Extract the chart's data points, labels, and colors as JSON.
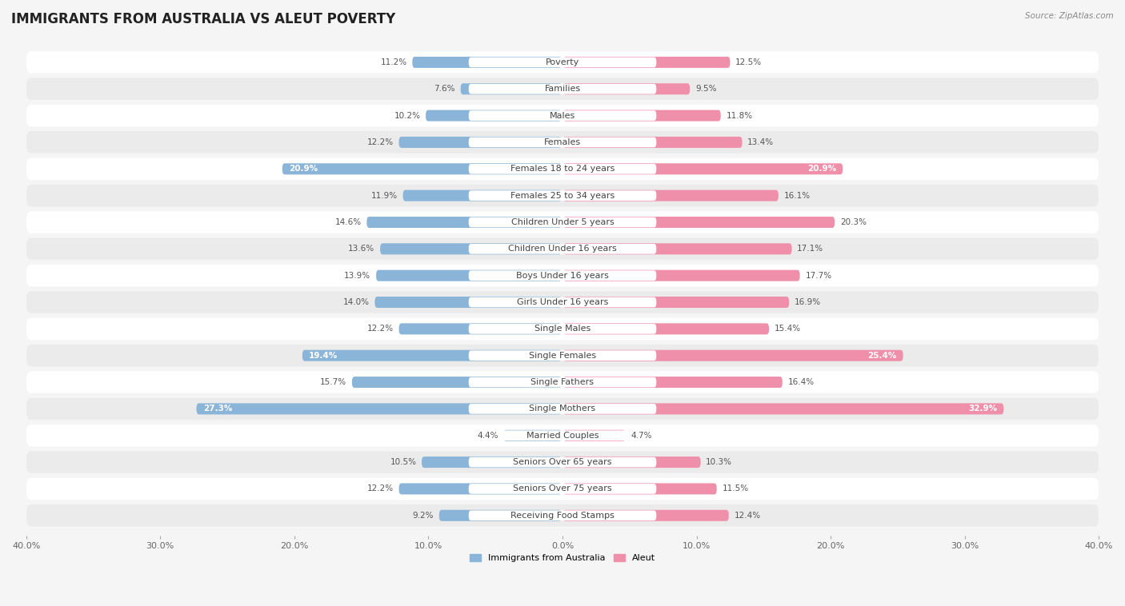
{
  "title": "IMMIGRANTS FROM AUSTRALIA VS ALEUT POVERTY",
  "source": "Source: ZipAtlas.com",
  "categories": [
    "Poverty",
    "Families",
    "Males",
    "Females",
    "Females 18 to 24 years",
    "Females 25 to 34 years",
    "Children Under 5 years",
    "Children Under 16 years",
    "Boys Under 16 years",
    "Girls Under 16 years",
    "Single Males",
    "Single Females",
    "Single Fathers",
    "Single Mothers",
    "Married Couples",
    "Seniors Over 65 years",
    "Seniors Over 75 years",
    "Receiving Food Stamps"
  ],
  "left_values": [
    11.2,
    7.6,
    10.2,
    12.2,
    20.9,
    11.9,
    14.6,
    13.6,
    13.9,
    14.0,
    12.2,
    19.4,
    15.7,
    27.3,
    4.4,
    10.5,
    12.2,
    9.2
  ],
  "right_values": [
    12.5,
    9.5,
    11.8,
    13.4,
    20.9,
    16.1,
    20.3,
    17.1,
    17.7,
    16.9,
    15.4,
    25.4,
    16.4,
    32.9,
    4.7,
    10.3,
    11.5,
    12.4
  ],
  "left_color": "#8ab4d8",
  "right_color": "#f08faa",
  "left_color_light": "#b8d4ea",
  "right_color_light": "#f5b8cb",
  "axis_max": 40.0,
  "background_color": "#f5f5f5",
  "row_bg_even": "#ffffff",
  "row_bg_odd": "#ebebeb",
  "legend_left": "Immigrants from Australia",
  "legend_right": "Aleut",
  "title_fontsize": 12,
  "label_fontsize": 8,
  "value_fontsize": 7.5,
  "axis_label_fontsize": 8
}
